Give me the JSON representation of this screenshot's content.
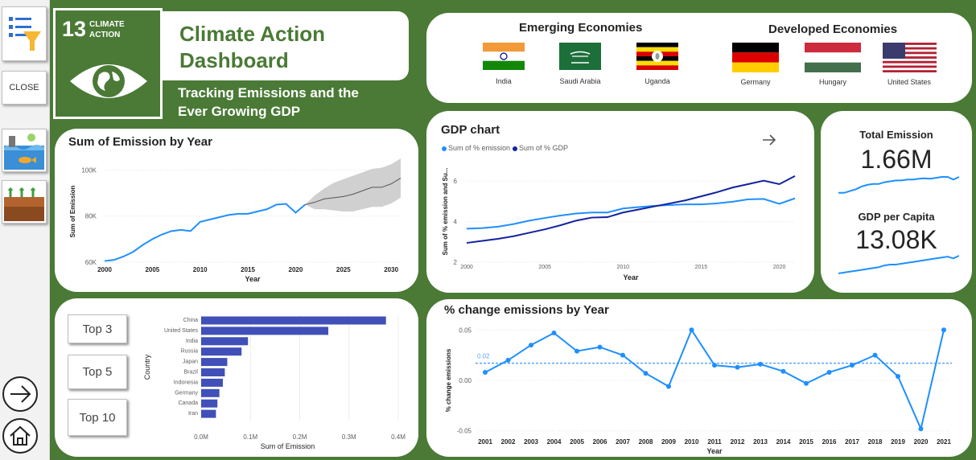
{
  "sidebar": {
    "close_label": "CLOSE"
  },
  "header": {
    "sdg_number": "13",
    "sdg_line1": "CLIMATE",
    "sdg_line2": "ACTION",
    "title": "Climate Action Dashboard",
    "subtitle": "Tracking Emissions and the Ever Growing GDP"
  },
  "economies": {
    "emerging_title": "Emerging Economies",
    "developed_title": "Developed Economies",
    "emerging": [
      "India",
      "Saudi Arabia",
      "Uganda"
    ],
    "developed": [
      "Germany",
      "Hungary",
      "United States"
    ]
  },
  "kpis": {
    "total_emission_label": "Total Emission",
    "total_emission_value": "1.66M",
    "gdp_label": "GDP per Capita",
    "gdp_value": "13.08K"
  },
  "top_buttons": [
    "Top 3",
    "Top 5",
    "Top 10"
  ],
  "colors": {
    "green": "#4a7a36",
    "line_blue": "#1f8fff",
    "dark_navy": "#12239e",
    "bar": "#4050b8"
  },
  "chart_data": [
    {
      "id": "emission_by_year",
      "type": "line",
      "title": "Sum of Emission by Year",
      "xlabel": "Year",
      "ylabel": "Sum of Emission",
      "x_ticks": [
        "2000",
        "2005",
        "2010",
        "2015",
        "2020",
        "2025",
        "2030"
      ],
      "y_ticks": [
        "60K",
        "80K",
        "100K"
      ],
      "xlim": [
        2000,
        2031
      ],
      "ylim": [
        60000,
        104000
      ],
      "actual": {
        "x": [
          2000,
          2001,
          2002,
          2003,
          2004,
          2005,
          2006,
          2007,
          2008,
          2009,
          2010,
          2011,
          2012,
          2013,
          2014,
          2015,
          2016,
          2017,
          2018,
          2019,
          2020,
          2021
        ],
        "y": [
          60500,
          61000,
          62500,
          64500,
          67500,
          70000,
          72000,
          73500,
          74000,
          73500,
          77500,
          78500,
          79500,
          80500,
          81000,
          81000,
          82000,
          83000,
          85000,
          85300,
          81500,
          85000
        ]
      },
      "forecast": {
        "x": [
          2021,
          2022,
          2023,
          2024,
          2025,
          2026,
          2027,
          2028,
          2029,
          2030,
          2031
        ],
        "y": [
          85000,
          86000,
          87500,
          88000,
          88500,
          89500,
          91000,
          92500,
          92500,
          94000,
          96500
        ],
        "upper": [
          85000,
          89000,
          92000,
          94500,
          96000,
          97500,
          99000,
          100500,
          101000,
          102500,
          105000
        ],
        "lower": [
          85000,
          83000,
          83000,
          82500,
          82000,
          82000,
          83000,
          84000,
          84000,
          85500,
          88000
        ]
      }
    },
    {
      "id": "gdp_chart",
      "type": "line",
      "title": "GDP chart",
      "xlabel": "Year",
      "ylabel": "Sum of % emission and Su...",
      "x_ticks": [
        "2000",
        "2005",
        "2010",
        "2015",
        "2020"
      ],
      "y_ticks": [
        "2",
        "4",
        "6"
      ],
      "xlim": [
        2000,
        2021
      ],
      "ylim": [
        2,
        7
      ],
      "x": [
        2000,
        2001,
        2002,
        2003,
        2004,
        2005,
        2006,
        2007,
        2008,
        2009,
        2010,
        2011,
        2012,
        2013,
        2014,
        2015,
        2016,
        2017,
        2018,
        2019,
        2020,
        2021
      ],
      "series": [
        {
          "name": "Sum of % emission",
          "values": [
            3.65,
            3.68,
            3.75,
            3.88,
            4.05,
            4.18,
            4.3,
            4.4,
            4.45,
            4.45,
            4.65,
            4.72,
            4.78,
            4.82,
            4.85,
            4.85,
            4.9,
            4.98,
            5.1,
            5.12,
            4.88,
            5.15
          ]
        },
        {
          "name": "Sum of % GDP",
          "values": [
            2.95,
            3.05,
            3.15,
            3.28,
            3.45,
            3.62,
            3.82,
            4.05,
            4.2,
            4.22,
            4.45,
            4.6,
            4.75,
            4.9,
            5.05,
            5.25,
            5.45,
            5.68,
            5.85,
            6.02,
            5.85,
            6.25
          ]
        }
      ]
    },
    {
      "id": "kpi_emission_spark",
      "type": "line",
      "ylim": [
        0,
        1
      ],
      "values": [
        0.1,
        0.1,
        0.2,
        0.3,
        0.45,
        0.55,
        0.6,
        0.6,
        0.7,
        0.75,
        0.8,
        0.8,
        0.85,
        0.85,
        0.9,
        0.92,
        0.9,
        0.95,
        1.0,
        1.0,
        0.85,
        1.0
      ]
    },
    {
      "id": "kpi_gdp_spark",
      "type": "line",
      "ylim": [
        0,
        1
      ],
      "values": [
        0.0,
        0.05,
        0.1,
        0.15,
        0.2,
        0.25,
        0.3,
        0.35,
        0.45,
        0.5,
        0.5,
        0.55,
        0.6,
        0.65,
        0.7,
        0.75,
        0.8,
        0.85,
        0.9,
        0.95,
        0.85,
        1.0
      ]
    },
    {
      "id": "emission_by_country",
      "type": "bar",
      "orientation": "horizontal",
      "xlabel": "Sum of Emission",
      "ylabel": "Country",
      "categories": [
        "China",
        "United States",
        "India",
        "Russia",
        "Japan",
        "Brazil",
        "Indonesia",
        "Germany",
        "Canada",
        "Iran"
      ],
      "values": [
        375000,
        258000,
        95000,
        82000,
        53000,
        48000,
        44000,
        37000,
        33000,
        30000
      ],
      "x_ticks": [
        "0.0M",
        "0.1M",
        "0.2M",
        "0.3M",
        "0.4M"
      ],
      "xlim": [
        0,
        400000
      ]
    },
    {
      "id": "pct_change_emissions",
      "type": "line",
      "title": "% change emissions by Year",
      "xlabel": "Year",
      "ylabel": "% change emissions",
      "x": [
        "2001",
        "2002",
        "2003",
        "2004",
        "2005",
        "2006",
        "2007",
        "2008",
        "2009",
        "2010",
        "2011",
        "2012",
        "2013",
        "2014",
        "2015",
        "2016",
        "2017",
        "2018",
        "2019",
        "2020",
        "2021"
      ],
      "values": [
        0.008,
        0.02,
        0.035,
        0.047,
        0.029,
        0.033,
        0.025,
        0.007,
        -0.006,
        0.05,
        0.015,
        0.013,
        0.016,
        0.009,
        -0.003,
        0.008,
        0.015,
        0.025,
        0.004,
        -0.048,
        0.05
      ],
      "y_ticks": [
        "0.05",
        "0.00",
        "-0.05"
      ],
      "ylim": [
        -0.055,
        0.055
      ],
      "average": 0.017,
      "average_label": "0.02"
    }
  ]
}
